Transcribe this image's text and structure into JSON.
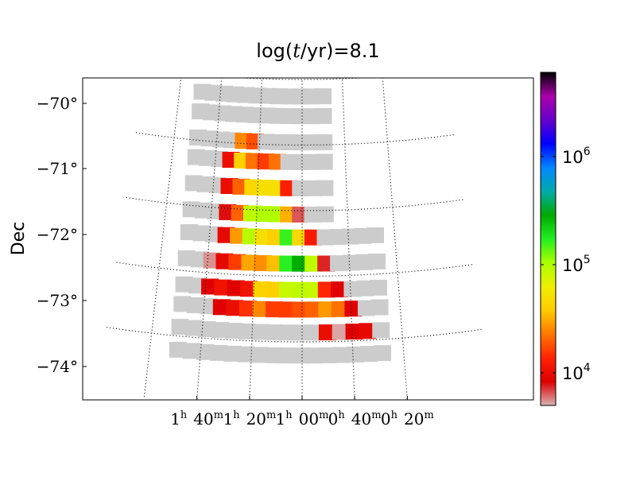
{
  "chart_data": {
    "type": "heatmap",
    "title": "log(t/yr)=8.1",
    "title_prefix": "log(",
    "title_var": "t",
    "title_suffix": "/yr)=8.1",
    "ylabel": "Dec",
    "xlabel": "",
    "grid": true,
    "grid_style": "dotted",
    "no_data_color": "#cccccc",
    "yticks": [
      {
        "value": -70,
        "label": "−70°"
      },
      {
        "value": -71,
        "label": "−71°"
      },
      {
        "value": -72,
        "label": "−72°"
      },
      {
        "value": -73,
        "label": "−73°"
      },
      {
        "value": -74,
        "label": "−74°"
      }
    ],
    "xticks": [
      {
        "label_h": "1",
        "label_hsup": "h",
        "label_m": "40",
        "label_msup": "m",
        "ra_hours": 1.6667
      },
      {
        "label_h": "1",
        "label_hsup": "h",
        "label_m": "20",
        "label_msup": "m",
        "ra_hours": 1.3333
      },
      {
        "label_h": "1",
        "label_hsup": "h",
        "label_m": "00",
        "label_msup": "m",
        "ra_hours": 1.0
      },
      {
        "label_h": "0",
        "label_hsup": "h",
        "label_m": "40",
        "label_msup": "m",
        "ra_hours": 0.6667
      },
      {
        "label_h": "0",
        "label_hsup": "h",
        "label_m": "20",
        "label_msup": "m",
        "ra_hours": 0.3333
      }
    ],
    "colorbar": {
      "scale": "log",
      "min": 5000,
      "max": 6000000,
      "ticks": [
        {
          "value": 10000,
          "base": "10",
          "exp": "4"
        },
        {
          "value": 100000,
          "base": "10",
          "exp": "5"
        },
        {
          "value": 1000000,
          "base": "10",
          "exp": "6"
        }
      ],
      "colormap": [
        "#d9b3b3",
        "#dd0000",
        "#ff2200",
        "#ff7700",
        "#ffcc00",
        "#eeee00",
        "#aaff00",
        "#22ee22",
        "#00aa00",
        "#00aaaa",
        "#0088ff",
        "#0000ff",
        "#6600cc",
        "#aa00aa",
        "#000000"
      ]
    },
    "cells": [
      {
        "ra": 1.82,
        "dec": -70.15,
        "value": null
      },
      {
        "ra": 1.73,
        "dec": -70.15,
        "value": null
      },
      {
        "ra": 1.64,
        "dec": -70.15,
        "value": null
      },
      {
        "ra": 1.55,
        "dec": -70.15,
        "value": null
      },
      {
        "ra": 1.46,
        "dec": -70.15,
        "value": null
      },
      {
        "ra": 1.37,
        "dec": -70.15,
        "value": null
      },
      {
        "ra": 1.28,
        "dec": -70.15,
        "value": null
      },
      {
        "ra": 1.19,
        "dec": -70.15,
        "value": null
      },
      {
        "ra": 1.1,
        "dec": -70.15,
        "value": null
      },
      {
        "ra": 1.01,
        "dec": -70.15,
        "value": null
      },
      {
        "ra": 0.92,
        "dec": -70.15,
        "value": null
      },
      {
        "ra": 0.83,
        "dec": -70.15,
        "value": null
      },
      {
        "ra": 1.82,
        "dec": -70.45,
        "value": null
      },
      {
        "ra": 1.73,
        "dec": -70.45,
        "value": null
      },
      {
        "ra": 1.64,
        "dec": -70.45,
        "value": null
      },
      {
        "ra": 1.55,
        "dec": -70.45,
        "value": null
      },
      {
        "ra": 1.46,
        "dec": -70.45,
        "value": null
      },
      {
        "ra": 1.37,
        "dec": -70.45,
        "value": null
      },
      {
        "ra": 1.28,
        "dec": -70.45,
        "value": null
      },
      {
        "ra": 1.19,
        "dec": -70.45,
        "value": null
      },
      {
        "ra": 1.1,
        "dec": -70.45,
        "value": null
      },
      {
        "ra": 1.01,
        "dec": -70.45,
        "value": null
      },
      {
        "ra": 0.92,
        "dec": -70.45,
        "value": null
      },
      {
        "ra": 0.83,
        "dec": -70.45,
        "value": null
      },
      {
        "ra": 1.82,
        "dec": -70.85,
        "value": null
      },
      {
        "ra": 1.73,
        "dec": -70.85,
        "value": null
      },
      {
        "ra": 1.64,
        "dec": -70.85,
        "value": null
      },
      {
        "ra": 1.55,
        "dec": -70.85,
        "value": null
      },
      {
        "ra": 1.46,
        "dec": -70.85,
        "value": 25000
      },
      {
        "ra": 1.37,
        "dec": -70.85,
        "value": 18000
      },
      {
        "ra": 1.28,
        "dec": -70.85,
        "value": null
      },
      {
        "ra": 1.19,
        "dec": -70.85,
        "value": null
      },
      {
        "ra": 1.1,
        "dec": -70.85,
        "value": null
      },
      {
        "ra": 1.01,
        "dec": -70.85,
        "value": null
      },
      {
        "ra": 0.92,
        "dec": -70.85,
        "value": null
      },
      {
        "ra": 0.83,
        "dec": -70.85,
        "value": null
      },
      {
        "ra": 1.82,
        "dec": -71.15,
        "value": null
      },
      {
        "ra": 1.73,
        "dec": -71.15,
        "value": null
      },
      {
        "ra": 1.64,
        "dec": -71.15,
        "value": null
      },
      {
        "ra": 1.55,
        "dec": -71.15,
        "value": 10000
      },
      {
        "ra": 1.46,
        "dec": -71.15,
        "value": 40000
      },
      {
        "ra": 1.37,
        "dec": -71.15,
        "value": 22000
      },
      {
        "ra": 1.28,
        "dec": -71.15,
        "value": 16000
      },
      {
        "ra": 1.19,
        "dec": -71.15,
        "value": 22000
      },
      {
        "ra": 1.1,
        "dec": -71.15,
        "value": null
      },
      {
        "ra": 1.01,
        "dec": -71.15,
        "value": null
      },
      {
        "ra": 0.92,
        "dec": -71.15,
        "value": null
      },
      {
        "ra": 0.83,
        "dec": -71.15,
        "value": null
      },
      {
        "ra": 1.82,
        "dec": -71.55,
        "value": null
      },
      {
        "ra": 1.73,
        "dec": -71.55,
        "value": null
      },
      {
        "ra": 1.64,
        "dec": -71.55,
        "value": null
      },
      {
        "ra": 1.55,
        "dec": -71.55,
        "value": 10000
      },
      {
        "ra": 1.46,
        "dec": -71.55,
        "value": 20000
      },
      {
        "ra": 1.37,
        "dec": -71.55,
        "value": 45000
      },
      {
        "ra": 1.28,
        "dec": -71.55,
        "value": 50000
      },
      {
        "ra": 1.19,
        "dec": -71.55,
        "value": 50000
      },
      {
        "ra": 1.1,
        "dec": -71.55,
        "value": 13000
      },
      {
        "ra": 1.01,
        "dec": -71.55,
        "value": null
      },
      {
        "ra": 0.92,
        "dec": -71.55,
        "value": null
      },
      {
        "ra": 0.83,
        "dec": -71.55,
        "value": null
      },
      {
        "ra": 1.82,
        "dec": -71.95,
        "value": null
      },
      {
        "ra": 1.73,
        "dec": -71.95,
        "value": null
      },
      {
        "ra": 1.64,
        "dec": -71.95,
        "value": null
      },
      {
        "ra": 1.55,
        "dec": -71.95,
        "value": 8000
      },
      {
        "ra": 1.46,
        "dec": -71.95,
        "value": 20000
      },
      {
        "ra": 1.37,
        "dec": -71.95,
        "value": 90000
      },
      {
        "ra": 1.28,
        "dec": -71.95,
        "value": 100000
      },
      {
        "ra": 1.19,
        "dec": -71.95,
        "value": 100000
      },
      {
        "ra": 1.1,
        "dec": -71.95,
        "value": 32000
      },
      {
        "ra": 1.01,
        "dec": -71.95,
        "value": 6500
      },
      {
        "ra": 0.92,
        "dec": -71.95,
        "value": null
      },
      {
        "ra": 0.83,
        "dec": -71.95,
        "value": null
      },
      {
        "ra": 1.82,
        "dec": -72.3,
        "value": null
      },
      {
        "ra": 1.73,
        "dec": -72.3,
        "value": null
      },
      {
        "ra": 1.64,
        "dec": -72.3,
        "value": null
      },
      {
        "ra": 1.55,
        "dec": -72.3,
        "value": 9500
      },
      {
        "ra": 1.46,
        "dec": -72.3,
        "value": 28000
      },
      {
        "ra": 1.37,
        "dec": -72.3,
        "value": 95000
      },
      {
        "ra": 1.28,
        "dec": -72.3,
        "value": 50000
      },
      {
        "ra": 1.19,
        "dec": -72.3,
        "value": 40000
      },
      {
        "ra": 1.1,
        "dec": -72.3,
        "value": 160000
      },
      {
        "ra": 1.01,
        "dec": -72.3,
        "value": 45000
      },
      {
        "ra": 0.92,
        "dec": -72.3,
        "value": 12000
      },
      {
        "ra": 0.83,
        "dec": -72.3,
        "value": null
      },
      {
        "ra": 0.74,
        "dec": -72.3,
        "value": null
      },
      {
        "ra": 0.65,
        "dec": -72.3,
        "value": null
      },
      {
        "ra": 0.56,
        "dec": -72.3,
        "value": null
      },
      {
        "ra": 0.47,
        "dec": -72.3,
        "value": null
      },
      {
        "ra": 1.82,
        "dec": -72.7,
        "value": null
      },
      {
        "ra": 1.73,
        "dec": -72.7,
        "value": null
      },
      {
        "ra": 1.64,
        "dec": -72.7,
        "value": 5500
      },
      {
        "ra": 1.55,
        "dec": -72.7,
        "value": 9500
      },
      {
        "ra": 1.46,
        "dec": -72.7,
        "value": 16000
      },
      {
        "ra": 1.37,
        "dec": -72.7,
        "value": 30000
      },
      {
        "ra": 1.28,
        "dec": -72.7,
        "value": 26000
      },
      {
        "ra": 1.19,
        "dec": -72.7,
        "value": 35000
      },
      {
        "ra": 1.1,
        "dec": -72.7,
        "value": 170000
      },
      {
        "ra": 1.01,
        "dec": -72.7,
        "value": 280000
      },
      {
        "ra": 0.92,
        "dec": -72.7,
        "value": 90000
      },
      {
        "ra": 0.83,
        "dec": -72.7,
        "value": 7500
      },
      {
        "ra": 0.74,
        "dec": -72.7,
        "value": null
      },
      {
        "ra": 0.65,
        "dec": -72.7,
        "value": null
      },
      {
        "ra": 0.56,
        "dec": -72.7,
        "value": null
      },
      {
        "ra": 0.47,
        "dec": -72.7,
        "value": null
      },
      {
        "ra": 1.82,
        "dec": -73.1,
        "value": null
      },
      {
        "ra": 1.73,
        "dec": -73.1,
        "value": null
      },
      {
        "ra": 1.64,
        "dec": -73.1,
        "value": 8500
      },
      {
        "ra": 1.55,
        "dec": -73.1,
        "value": 11000
      },
      {
        "ra": 1.46,
        "dec": -73.1,
        "value": 8500
      },
      {
        "ra": 1.37,
        "dec": -73.1,
        "value": 11000
      },
      {
        "ra": 1.28,
        "dec": -73.1,
        "value": 42000
      },
      {
        "ra": 1.19,
        "dec": -73.1,
        "value": 40000
      },
      {
        "ra": 1.1,
        "dec": -73.1,
        "value": 85000
      },
      {
        "ra": 1.01,
        "dec": -73.1,
        "value": 90000
      },
      {
        "ra": 0.92,
        "dec": -73.1,
        "value": 85000
      },
      {
        "ra": 0.83,
        "dec": -73.1,
        "value": 14000
      },
      {
        "ra": 0.74,
        "dec": -73.1,
        "value": 8500
      },
      {
        "ra": 0.65,
        "dec": -73.1,
        "value": null
      },
      {
        "ra": 0.56,
        "dec": -73.1,
        "value": null
      },
      {
        "ra": 0.47,
        "dec": -73.1,
        "value": null
      },
      {
        "ra": 1.82,
        "dec": -73.4,
        "value": null
      },
      {
        "ra": 1.73,
        "dec": -73.4,
        "value": null
      },
      {
        "ra": 1.64,
        "dec": -73.4,
        "value": null
      },
      {
        "ra": 1.55,
        "dec": -73.4,
        "value": 8500
      },
      {
        "ra": 1.46,
        "dec": -73.4,
        "value": 10000
      },
      {
        "ra": 1.37,
        "dec": -73.4,
        "value": 15000
      },
      {
        "ra": 1.28,
        "dec": -73.4,
        "value": 25000
      },
      {
        "ra": 1.19,
        "dec": -73.4,
        "value": 16000
      },
      {
        "ra": 1.1,
        "dec": -73.4,
        "value": 16000
      },
      {
        "ra": 1.01,
        "dec": -73.4,
        "value": 18000
      },
      {
        "ra": 0.92,
        "dec": -73.4,
        "value": 20000
      },
      {
        "ra": 0.83,
        "dec": -73.4,
        "value": 28000
      },
      {
        "ra": 0.74,
        "dec": -73.4,
        "value": 22000
      },
      {
        "ra": 0.65,
        "dec": -73.4,
        "value": 8500
      },
      {
        "ra": 0.56,
        "dec": -73.4,
        "value": null
      },
      {
        "ra": 0.47,
        "dec": -73.4,
        "value": null
      },
      {
        "ra": 1.82,
        "dec": -73.75,
        "value": null
      },
      {
        "ra": 1.73,
        "dec": -73.75,
        "value": null
      },
      {
        "ra": 1.64,
        "dec": -73.75,
        "value": null
      },
      {
        "ra": 1.55,
        "dec": -73.75,
        "value": null
      },
      {
        "ra": 1.46,
        "dec": -73.75,
        "value": null
      },
      {
        "ra": 1.37,
        "dec": -73.75,
        "value": null
      },
      {
        "ra": 1.28,
        "dec": -73.75,
        "value": null
      },
      {
        "ra": 1.19,
        "dec": -73.75,
        "value": null
      },
      {
        "ra": 1.1,
        "dec": -73.75,
        "value": null
      },
      {
        "ra": 1.01,
        "dec": -73.75,
        "value": null
      },
      {
        "ra": 0.92,
        "dec": -73.75,
        "value": null
      },
      {
        "ra": 0.83,
        "dec": -73.75,
        "value": 10000
      },
      {
        "ra": 0.74,
        "dec": -73.75,
        "value": 5200
      },
      {
        "ra": 0.65,
        "dec": -73.75,
        "value": 8500
      },
      {
        "ra": 0.56,
        "dec": -73.75,
        "value": 9500
      },
      {
        "ra": 0.47,
        "dec": -73.75,
        "value": null
      },
      {
        "ra": 1.82,
        "dec": -74.1,
        "value": null
      },
      {
        "ra": 1.73,
        "dec": -74.1,
        "value": null
      },
      {
        "ra": 1.64,
        "dec": -74.1,
        "value": null
      },
      {
        "ra": 1.55,
        "dec": -74.1,
        "value": null
      },
      {
        "ra": 1.46,
        "dec": -74.1,
        "value": null
      },
      {
        "ra": 1.37,
        "dec": -74.1,
        "value": null
      },
      {
        "ra": 1.28,
        "dec": -74.1,
        "value": null
      },
      {
        "ra": 1.19,
        "dec": -74.1,
        "value": null
      },
      {
        "ra": 1.1,
        "dec": -74.1,
        "value": null
      },
      {
        "ra": 1.01,
        "dec": -74.1,
        "value": null
      },
      {
        "ra": 0.92,
        "dec": -74.1,
        "value": null
      },
      {
        "ra": 0.83,
        "dec": -74.1,
        "value": null
      },
      {
        "ra": 0.74,
        "dec": -74.1,
        "value": null
      },
      {
        "ra": 0.65,
        "dec": -74.1,
        "value": null
      },
      {
        "ra": 0.56,
        "dec": -74.1,
        "value": null
      },
      {
        "ra": 0.47,
        "dec": -74.1,
        "value": null
      }
    ]
  }
}
